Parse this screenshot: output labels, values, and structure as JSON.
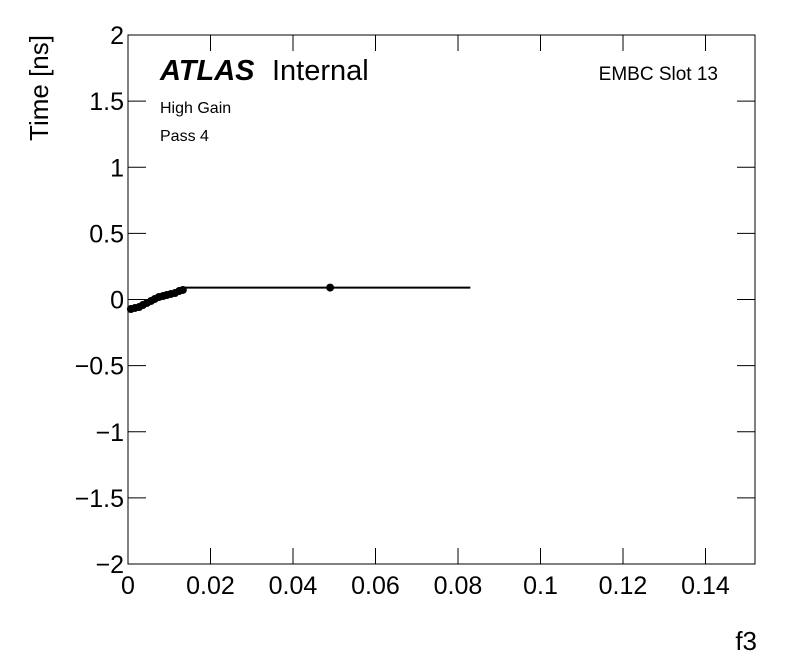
{
  "chart_data": {
    "type": "scatter",
    "title_bold": "ATLAS",
    "title": "Internal",
    "annotations": [
      "High Gain",
      "Pass 4"
    ],
    "label": "EMBC Slot 13",
    "xlabel": "f3",
    "ylabel": "Time [ns]",
    "xlim": [
      0,
      0.152
    ],
    "ylim": [
      -2,
      2
    ],
    "xticks": [
      0,
      0.02,
      0.04,
      0.06,
      0.08,
      0.1,
      0.12,
      0.14
    ],
    "yticks": [
      {
        "value": -2,
        "label": "−2"
      },
      {
        "value": -1.5,
        "label": "−1.5"
      },
      {
        "value": -1,
        "label": "−1"
      },
      {
        "value": -0.5,
        "label": "−0.5"
      },
      0,
      0.5,
      1,
      1.5,
      2
    ],
    "color": "#000000",
    "series": [
      {
        "x": [
          0.0007,
          0.0017,
          0.0027,
          0.0036,
          0.0046,
          0.0056,
          0.0065,
          0.0075,
          0.0085,
          0.0094,
          0.0104,
          0.0114,
          0.0124,
          0.0133
        ],
        "values": [
          -0.072,
          -0.064,
          -0.057,
          -0.042,
          -0.026,
          -0.011,
          0.004,
          0.019,
          0.026,
          0.034,
          0.042,
          0.049,
          0.064,
          0.072
        ]
      },
      {
        "x": [
          0.049
        ],
        "values": [
          0.09
        ],
        "xerr_low": [
          0.0352
        ],
        "xerr_high": [
          0.034
        ]
      }
    ]
  }
}
